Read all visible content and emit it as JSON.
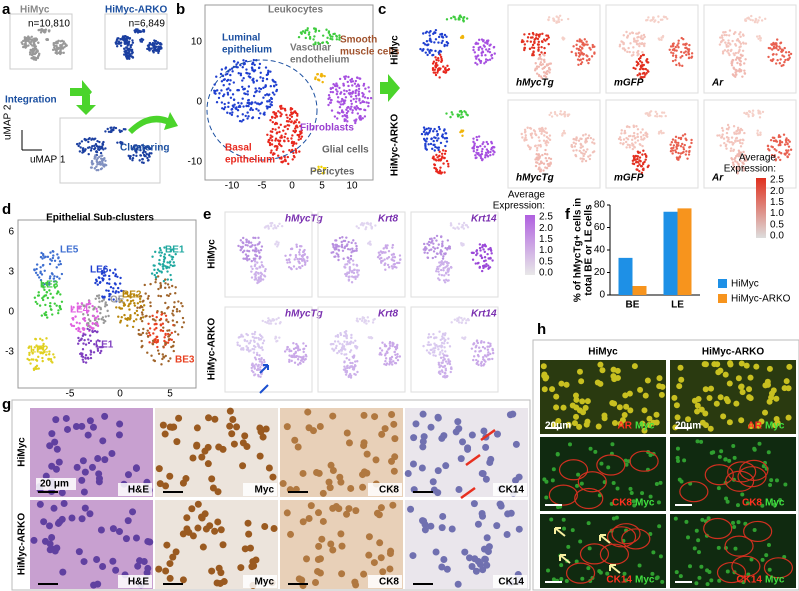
{
  "panels": {
    "a": {
      "label": "a",
      "groups": [
        {
          "name": "HiMyc",
          "count": "n=10,810"
        },
        {
          "name": "HiMyc-ARKO",
          "count": "n=6,849"
        }
      ],
      "steps": [
        "Integration",
        "Clustering"
      ],
      "axes": [
        "uMAP 1",
        "uMAP 2"
      ]
    },
    "b": {
      "label": "b",
      "clusters": [
        "Leukocytes",
        "Vascular",
        "endothelium",
        "Smooth",
        "muscle cells",
        "Luminal",
        "epithelium",
        "Basal",
        "epithelium",
        "Fibroblasts",
        "Glial cells",
        "Pericytes"
      ],
      "xticks": [
        "-10",
        "-5",
        "0",
        "5",
        "10"
      ],
      "yticks": [
        "10",
        "0",
        "-10"
      ]
    },
    "c": {
      "label": "c",
      "rows": [
        "HiMyc",
        "HiMyc-ARKO"
      ],
      "genes": [
        "hMycTg",
        "mGFP",
        "Ar"
      ],
      "scale": {
        "title": [
          "Average",
          "Expression:"
        ],
        "ticks": [
          "2.5",
          "2.0",
          "1.5",
          "1.0",
          "0.5",
          "0.0"
        ]
      }
    },
    "d": {
      "label": "d",
      "title": "Epithelial Sub-clusters",
      "clusters": [
        "LE5",
        "LE6",
        "BE1",
        "LE3",
        "OE",
        "BE2",
        "LE4",
        "LE2",
        "LE1",
        "BE3"
      ],
      "xticks": [
        "-5",
        "0",
        "5"
      ],
      "yticks": [
        "6",
        "3",
        "0",
        "-3"
      ]
    },
    "e": {
      "label": "e",
      "rows": [
        "HiMyc",
        "HiMyc-ARKO"
      ],
      "genes": [
        "hMycTg",
        "Krt8",
        "Krt14"
      ],
      "scale": {
        "title": [
          "Average",
          "Expression:"
        ],
        "ticks": [
          "2.5",
          "2.0",
          "1.5",
          "1.0",
          "0.5",
          "0.0"
        ]
      }
    },
    "f": {
      "label": "f"
    },
    "g": {
      "label": "g",
      "rows": [
        "HiMyc",
        "HiMyc-ARKO"
      ],
      "stains": [
        "H&E",
        "Myc",
        "CK8",
        "CK14"
      ],
      "scale_bar": "20 μm"
    },
    "h": {
      "label": "h",
      "columns": [
        "HiMyc",
        "HiMyc-ARKO"
      ],
      "stains": [
        {
          "red": "AR",
          "green": "Myc"
        },
        {
          "red": "CK8",
          "green": "Myc"
        },
        {
          "red": "CK14",
          "green": "Myc"
        }
      ],
      "scale_bar": "20μm"
    }
  },
  "chart_data": {
    "type": "bar",
    "ylabel_lines": [
      "% of hMycTg+ cells in",
      "total BE or LE cells"
    ],
    "categories": [
      "BE",
      "LE"
    ],
    "series": [
      {
        "name": "HiMyc",
        "color": "#1e90e6",
        "values": [
          33,
          74
        ]
      },
      {
        "name": "HiMyc-ARKO",
        "color": "#f7941d",
        "values": [
          8,
          77
        ]
      }
    ],
    "ylim": [
      0,
      80
    ],
    "yticks": [
      0,
      20,
      40,
      60,
      80
    ],
    "legend": "right"
  }
}
